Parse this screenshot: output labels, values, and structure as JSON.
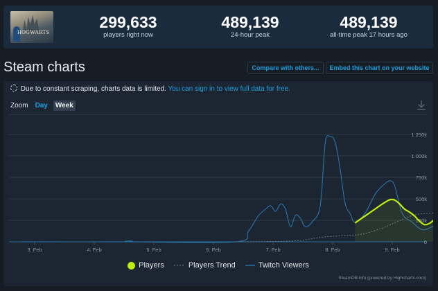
{
  "stats": {
    "players_now": {
      "value": "299,633",
      "label": "players right now"
    },
    "peak_24h": {
      "value": "489,139",
      "label": "24-hour peak"
    },
    "all_time_peak": {
      "value": "489,139",
      "label": "all-time peak 17 hours ago"
    },
    "capsule_text": "HOGWARTS"
  },
  "header": {
    "title": "Steam charts",
    "compare_label": "Compare with others...",
    "embed_label": "Embed this chart on your website"
  },
  "notice": {
    "text": "Due to constant scraping, charts data is limited.",
    "link": "You can sign in to view full data for free."
  },
  "zoom": {
    "label": "Zoom",
    "options": [
      "Day",
      "Week"
    ],
    "selected": "Week"
  },
  "legend": {
    "players": "Players",
    "trend": "Players Trend",
    "twitch": "Twitch Viewers"
  },
  "credits": "SteamDB.info (powered by Highcharts.com)",
  "colors": {
    "players": "#beee11",
    "trend": "#6b7884",
    "twitch": "#2a6ea0",
    "grid": "#2f3b48",
    "link": "#1ea0e0"
  },
  "chart_data": {
    "type": "line",
    "title": "Steam charts",
    "xlabel": "",
    "ylabel": "",
    "x_ticks": [
      "3. Feb",
      "4. Feb",
      "5. Feb",
      "6. Feb",
      "7. Feb",
      "8. Feb",
      "9. Feb"
    ],
    "y_ticks": [
      "0",
      "250k",
      "500k",
      "750k",
      "1 000k",
      "1 250k"
    ],
    "ylim": [
      0,
      1300000
    ],
    "grid": true,
    "legend_position": "bottom",
    "series": [
      {
        "name": "Players",
        "style": "solid-area",
        "points": [
          {
            "x": "8. Feb 09:00",
            "y": 220000
          },
          {
            "x": "8. Feb 13:00",
            "y": 300000
          },
          {
            "x": "8. Feb 17:00",
            "y": 380000
          },
          {
            "x": "8. Feb 20:00",
            "y": 440000
          },
          {
            "x": "8. Feb 23:00",
            "y": 489139
          },
          {
            "x": "9. Feb 01:00",
            "y": 485000
          },
          {
            "x": "9. Feb 03:00",
            "y": 440000
          },
          {
            "x": "9. Feb 05:00",
            "y": 380000
          },
          {
            "x": "9. Feb 07:00",
            "y": 345000
          },
          {
            "x": "9. Feb 09:00",
            "y": 300000
          },
          {
            "x": "9. Feb 11:00",
            "y": 240000
          },
          {
            "x": "9. Feb 13:00",
            "y": 200000
          },
          {
            "x": "9. Feb 15:00",
            "y": 215000
          },
          {
            "x": "9. Feb 17:00",
            "y": 260000
          },
          {
            "x": "9. Feb 19:00",
            "y": 299633
          }
        ]
      },
      {
        "name": "Players Trend",
        "style": "dashed",
        "points": [
          {
            "x": "6. Feb 08:00",
            "y": 0
          },
          {
            "x": "7. Feb 08:00",
            "y": 10000
          },
          {
            "x": "7. Feb 20:00",
            "y": 55000
          },
          {
            "x": "8. Feb 06:00",
            "y": 75000
          },
          {
            "x": "8. Feb 12:00",
            "y": 90000
          },
          {
            "x": "8. Feb 20:00",
            "y": 160000
          },
          {
            "x": "9. Feb 04:00",
            "y": 260000
          },
          {
            "x": "9. Feb 10:00",
            "y": 320000
          },
          {
            "x": "9. Feb 19:00",
            "y": 340000
          }
        ]
      },
      {
        "name": "Twitch Viewers",
        "style": "solid",
        "points": [
          {
            "x": "2. Feb 18:00",
            "y": 0
          },
          {
            "x": "4. Feb 12:00",
            "y": 0
          },
          {
            "x": "4. Feb 14:00",
            "y": 12000
          },
          {
            "x": "4. Feb 16:00",
            "y": 0
          },
          {
            "x": "6. Feb 09:00",
            "y": 0
          },
          {
            "x": "6. Feb 14:00",
            "y": 120000
          },
          {
            "x": "6. Feb 18:00",
            "y": 300000
          },
          {
            "x": "6. Feb 21:00",
            "y": 380000
          },
          {
            "x": "6. Feb 23:00",
            "y": 420000
          },
          {
            "x": "7. Feb 01:00",
            "y": 355000
          },
          {
            "x": "7. Feb 03:00",
            "y": 440000
          },
          {
            "x": "7. Feb 05:00",
            "y": 380000
          },
          {
            "x": "7. Feb 07:00",
            "y": 175000
          },
          {
            "x": "7. Feb 09:00",
            "y": 310000
          },
          {
            "x": "7. Feb 11:00",
            "y": 275000
          },
          {
            "x": "7. Feb 13:00",
            "y": 175000
          },
          {
            "x": "7. Feb 16:00",
            "y": 240000
          },
          {
            "x": "7. Feb 19:00",
            "y": 420000
          },
          {
            "x": "7. Feb 21:00",
            "y": 1150000
          },
          {
            "x": "7. Feb 23:00",
            "y": 1225000
          },
          {
            "x": "8. Feb 01:00",
            "y": 1160000
          },
          {
            "x": "8. Feb 03:00",
            "y": 850000
          },
          {
            "x": "8. Feb 05:00",
            "y": 450000
          },
          {
            "x": "8. Feb 07:00",
            "y": 330000
          },
          {
            "x": "8. Feb 09:00",
            "y": 225000
          },
          {
            "x": "8. Feb 13:00",
            "y": 330000
          },
          {
            "x": "8. Feb 17:00",
            "y": 550000
          },
          {
            "x": "8. Feb 20:00",
            "y": 650000
          },
          {
            "x": "8. Feb 23:00",
            "y": 710000
          },
          {
            "x": "9. Feb 01:00",
            "y": 650000
          },
          {
            "x": "9. Feb 04:00",
            "y": 330000
          },
          {
            "x": "9. Feb 08:00",
            "y": 230000
          },
          {
            "x": "9. Feb 12:00",
            "y": 140000
          },
          {
            "x": "9. Feb 16:00",
            "y": 175000
          },
          {
            "x": "9. Feb 19:00",
            "y": 230000
          }
        ]
      }
    ]
  }
}
